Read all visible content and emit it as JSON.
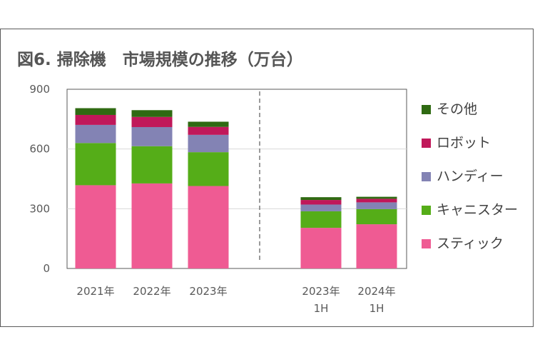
{
  "chart_data": {
    "type": "bar",
    "stacked": true,
    "title": "図6. 掃除機　市場規模の推移（万台）",
    "categories": [
      [
        "2021年"
      ],
      [
        "2022年"
      ],
      [
        "2023年"
      ],
      [
        "2023年",
        "1H"
      ],
      [
        "2024年",
        "1H"
      ]
    ],
    "series": [
      {
        "name": "スティック",
        "color": "#ef5b93",
        "values": [
          418,
          427,
          414,
          204,
          222
        ]
      },
      {
        "name": "キャニスター",
        "color": "#55ad18",
        "values": [
          212,
          187,
          170,
          83,
          76
        ]
      },
      {
        "name": "ハンディー",
        "color": "#8383b4",
        "values": [
          91,
          96,
          87,
          34,
          34
        ]
      },
      {
        "name": "ロボット",
        "color": "#c0185a",
        "values": [
          50,
          51,
          40,
          23,
          18
        ]
      },
      {
        "name": "その他",
        "color": "#2f6a12",
        "values": [
          34,
          34,
          26,
          14,
          10
        ]
      }
    ],
    "ylim": [
      0,
      900
    ],
    "yticks": [
      0,
      300,
      600,
      900
    ],
    "grid": true,
    "legend": "right",
    "legend_order": [
      "その他",
      "ロボット",
      "ハンディー",
      "キャニスター",
      "スティック"
    ],
    "divider": "dashed line between 2023年 and 2023年 1H"
  }
}
